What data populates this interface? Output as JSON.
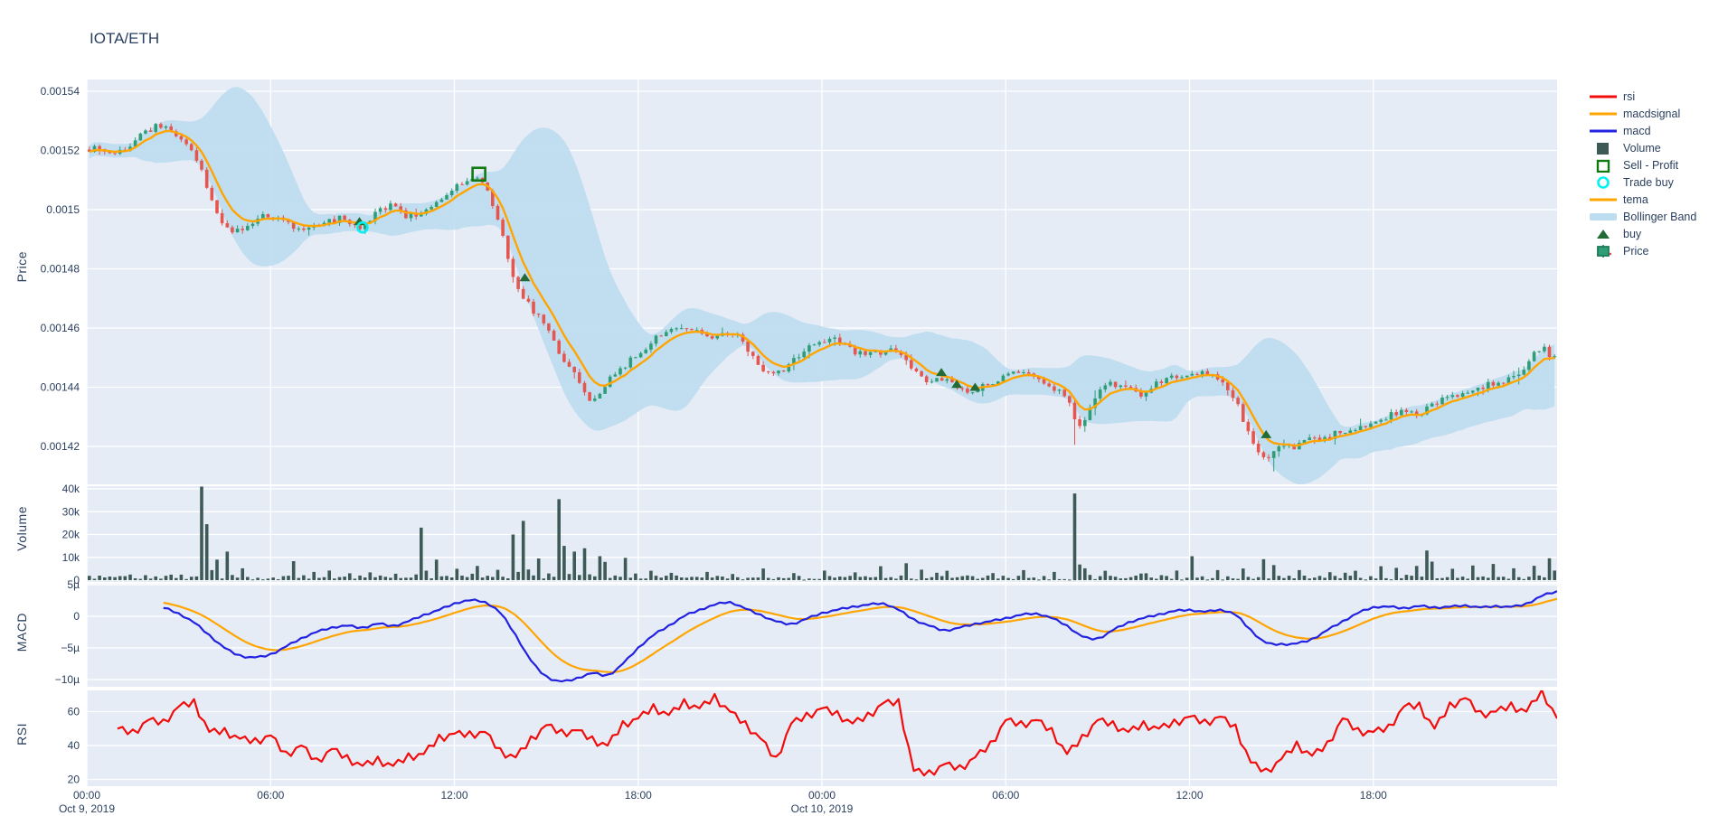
{
  "title": "IOTA/ETH",
  "colors": {
    "text": "#2a3f5f",
    "plot_bg": "#e5ecf6",
    "grid": "#ffffff",
    "candle_up": "#2f9e77",
    "candle_down": "#e4564f",
    "tema": "#ffa502",
    "macd": "#2222e0",
    "macdsignal": "#ffa502",
    "rsi": "#f20d0d",
    "volume": "#3d5a56",
    "bollinger": "#bcdcf0",
    "buy": "#226b35",
    "sell_profit": "#0f7a12",
    "trade_buy": "#00f2f2"
  },
  "legend": [
    {
      "label": "rsi",
      "type": "line",
      "color": "#f20d0d"
    },
    {
      "label": "macdsignal",
      "type": "line",
      "color": "#ffa502"
    },
    {
      "label": "macd",
      "type": "line",
      "color": "#2222e0"
    },
    {
      "label": "Volume",
      "type": "square-filled",
      "color": "#3d5a56"
    },
    {
      "label": "Sell - Profit",
      "type": "square-open",
      "color": "#0f7a12"
    },
    {
      "label": "Trade buy",
      "type": "circle-open",
      "color": "#00f2f2"
    },
    {
      "label": "tema",
      "type": "line",
      "color": "#ffa502"
    },
    {
      "label": "Bollinger Band",
      "type": "band",
      "color": "#bcdcf0"
    },
    {
      "label": "buy",
      "type": "triangle",
      "color": "#226b35"
    },
    {
      "label": "Price",
      "type": "candle",
      "color": "#2f9e77"
    }
  ],
  "axes": {
    "price": {
      "title": "Price",
      "tick_labels": [
        "0.00154",
        "0.00152",
        "0.0015",
        "0.00148",
        "0.00146",
        "0.00144",
        "0.00142"
      ],
      "tick_values_u": [
        1540,
        1520,
        1500,
        1480,
        1460,
        1440,
        1420
      ]
    },
    "volume": {
      "title": "Volume",
      "tick_labels": [
        "40k",
        "30k",
        "20k",
        "10k",
        "0"
      ],
      "tick_values": [
        40000,
        30000,
        20000,
        10000,
        0
      ]
    },
    "macd": {
      "title": "MACD",
      "tick_labels": [
        "5µ",
        "0",
        "−5µ",
        "−10µ"
      ],
      "tick_values_u": [
        5,
        0,
        -5,
        -10
      ]
    },
    "rsi": {
      "title": "RSI",
      "tick_labels": [
        "60",
        "40",
        "20"
      ],
      "tick_values": [
        60,
        40,
        20
      ]
    },
    "x": {
      "tick_labels": [
        "00:00",
        "06:00",
        "12:00",
        "18:00",
        "00:00",
        "06:00",
        "12:00",
        "18:00"
      ],
      "tick_hours": [
        0,
        6,
        12,
        18,
        24,
        30,
        36,
        42
      ],
      "day_labels": [
        {
          "label": "Oct 9, 2019",
          "hour": 0
        },
        {
          "label": "Oct 10, 2019",
          "hour": 24
        }
      ]
    }
  },
  "chart_data": [
    {
      "type": "candlestick",
      "name": "Price",
      "pair": "IOTA/ETH",
      "x_range_hours": [
        0,
        48
      ],
      "candle_minutes": 10,
      "unit": "price in 1e-6 ETH",
      "ylim_u": [
        1408,
        1544
      ],
      "path_start_hour": 0.0,
      "path_step_hours": 0.5,
      "path_30m_u": [
        1520,
        1521,
        1519,
        1522,
        1526,
        1528,
        1524,
        1521,
        1508,
        1495,
        1493,
        1496,
        1498,
        1496,
        1493,
        1494,
        1496,
        1497,
        1494,
        1499,
        1501,
        1498,
        1499,
        1503,
        1507,
        1510,
        1509,
        1497,
        1478,
        1468,
        1462,
        1452,
        1444,
        1436,
        1441,
        1446,
        1451,
        1455,
        1459,
        1461,
        1459,
        1456,
        1459,
        1455,
        1448,
        1444,
        1448,
        1452,
        1455,
        1456,
        1453,
        1451,
        1452,
        1452,
        1447,
        1442,
        1443,
        1440,
        1439,
        1441,
        1443,
        1445,
        1443,
        1440,
        1437,
        1428,
        1437,
        1441,
        1440,
        1437,
        1441,
        1444,
        1443,
        1445,
        1442,
        1437,
        1425,
        1417,
        1419,
        1420,
        1422,
        1423,
        1425,
        1426,
        1428,
        1430,
        1432,
        1431,
        1434,
        1436,
        1437,
        1440,
        1441,
        1443,
        1446,
        1453,
        1450
      ],
      "wick_events": [
        [
          2.4,
          "high",
          1529.5
        ],
        [
          32.1,
          "low",
          1420.5
        ],
        [
          38.7,
          "low",
          1411.5
        ]
      ],
      "overlays": [
        "tema (EMA of close)",
        "Bollinger Band (20, 2σ)"
      ]
    },
    {
      "type": "bar",
      "name": "Volume",
      "ylim": [
        0,
        42500
      ],
      "baseline_range": [
        250,
        2100
      ],
      "spikes_hour_value": [
        [
          3.6,
          41000
        ],
        [
          3.85,
          24500
        ],
        [
          4.1,
          9000
        ],
        [
          4.5,
          12500
        ],
        [
          5.0,
          5200
        ],
        [
          6.6,
          8300
        ],
        [
          7.3,
          3600
        ],
        [
          7.9,
          4200
        ],
        [
          8.5,
          3000
        ],
        [
          9.2,
          3400
        ],
        [
          10.0,
          2800
        ],
        [
          10.9,
          23000
        ],
        [
          11.3,
          9000
        ],
        [
          12.0,
          5000
        ],
        [
          12.6,
          6200
        ],
        [
          13.4,
          4500
        ],
        [
          13.9,
          20000
        ],
        [
          14.2,
          26000
        ],
        [
          14.6,
          9500
        ],
        [
          15.25,
          35500
        ],
        [
          15.5,
          15000
        ],
        [
          15.9,
          12500
        ],
        [
          16.2,
          14000
        ],
        [
          16.6,
          10500
        ],
        [
          16.9,
          8000
        ],
        [
          17.5,
          9800
        ],
        [
          18.3,
          4100
        ],
        [
          19.0,
          3200
        ],
        [
          20.1,
          3600
        ],
        [
          21.0,
          2700
        ],
        [
          22.0,
          5100
        ],
        [
          23.0,
          3100
        ],
        [
          24.0,
          4200
        ],
        [
          25.0,
          3400
        ],
        [
          25.8,
          6100
        ],
        [
          26.6,
          7400
        ],
        [
          27.2,
          4600
        ],
        [
          28.0,
          4100
        ],
        [
          29.5,
          3100
        ],
        [
          30.5,
          4400
        ],
        [
          31.5,
          3600
        ],
        [
          32.1,
          38000
        ],
        [
          32.5,
          5200
        ],
        [
          33.2,
          4100
        ],
        [
          34.5,
          3000
        ],
        [
          35.5,
          4200
        ],
        [
          36.0,
          10500
        ],
        [
          36.8,
          4400
        ],
        [
          37.6,
          5100
        ],
        [
          38.3,
          9200
        ],
        [
          38.7,
          6600
        ],
        [
          39.5,
          4400
        ],
        [
          40.5,
          3500
        ],
        [
          41.3,
          4100
        ],
        [
          42.2,
          6100
        ],
        [
          42.6,
          5400
        ],
        [
          43.3,
          6200
        ],
        [
          43.6,
          13000
        ],
        [
          43.9,
          8100
        ],
        [
          44.5,
          5000
        ],
        [
          45.2,
          6400
        ],
        [
          45.8,
          7100
        ],
        [
          46.5,
          5200
        ],
        [
          47.2,
          6300
        ],
        [
          47.7,
          9600
        ],
        [
          47.95,
          4200
        ]
      ]
    },
    {
      "type": "line",
      "series": [
        {
          "name": "macd",
          "color": "#2222e0"
        },
        {
          "name": "macdsignal",
          "color": "#ffa502"
        }
      ],
      "unit": "1e-6",
      "ylim_u": [
        -11,
        5
      ],
      "start_hour": 2.5,
      "step_hours": 0.5,
      "macd_30m_u": [
        1.3,
        0.4,
        -1.0,
        -3.0,
        -5.0,
        -6.2,
        -6.5,
        -6.0,
        -4.8,
        -3.5,
        -2.5,
        -1.8,
        -1.5,
        -1.8,
        -1.2,
        -1.5,
        -0.8,
        0.2,
        1.0,
        2.0,
        2.5,
        2.2,
        0.5,
        -3.0,
        -7.0,
        -9.5,
        -10.3,
        -9.8,
        -9.0,
        -9.3,
        -7.5,
        -5.0,
        -3.0,
        -1.5,
        0.0,
        1.0,
        1.8,
        2.2,
        1.2,
        0.2,
        -0.8,
        -1.2,
        -0.4,
        0.5,
        1.0,
        1.5,
        1.8,
        2.0,
        1.0,
        -0.5,
        -1.5,
        -2.2,
        -1.8,
        -1.2,
        -0.8,
        -0.3,
        0.2,
        0.4,
        -0.3,
        -1.5,
        -3.2,
        -3.5,
        -2.2,
        -1.0,
        -0.3,
        0.3,
        0.8,
        1.0,
        0.7,
        1.0,
        0.2,
        -2.2,
        -4.2,
        -4.4,
        -4.3,
        -3.6,
        -2.2,
        -0.8,
        0.5,
        1.4,
        1.5,
        1.3,
        1.6,
        1.4,
        1.5,
        1.7,
        1.4,
        1.6,
        1.5,
        2.0,
        3.2,
        3.9
      ],
      "macdsignal_note": "EMA(macd, span 12)"
    },
    {
      "type": "line",
      "series": [
        {
          "name": "rsi",
          "color": "#f20d0d"
        }
      ],
      "ylim": [
        16,
        74
      ],
      "start_hour": 1.0,
      "step_hours": 0.5,
      "rsi_30m": [
        50,
        47,
        55,
        53,
        63,
        65,
        48,
        48,
        44,
        42,
        46,
        34,
        40,
        30,
        38,
        32,
        28,
        31,
        28,
        33,
        35,
        44,
        47,
        46,
        48,
        36,
        33,
        43,
        52,
        47,
        49,
        43,
        40,
        52,
        56,
        62,
        58,
        65,
        62,
        68,
        60,
        52,
        44,
        31,
        53,
        57,
        62,
        58,
        53,
        57,
        65,
        65,
        25,
        23,
        29,
        26,
        33,
        40,
        55,
        52,
        55,
        48,
        35,
        44,
        55,
        52,
        48,
        52,
        50,
        53,
        57,
        53,
        57,
        50,
        30,
        24,
        32,
        40,
        34,
        40,
        56,
        48,
        48,
        50,
        63,
        63,
        50,
        63,
        68,
        58,
        60,
        63,
        60,
        72,
        56
      ]
    }
  ],
  "markers": {
    "unit": "price in 1e-6 ETH",
    "buy": {
      "label": "buy",
      "points_hour_price_u": [
        [
          8.9,
          1496
        ],
        [
          14.3,
          1477
        ],
        [
          27.9,
          1445
        ],
        [
          28.4,
          1441
        ],
        [
          29.0,
          1440
        ],
        [
          38.5,
          1424
        ]
      ]
    },
    "sell_profit": {
      "label": "Sell - Profit",
      "points_hour_price_u": [
        [
          12.8,
          1512
        ]
      ]
    },
    "trade_buy": {
      "label": "Trade buy",
      "points_hour_price_u": [
        [
          9.0,
          1494
        ]
      ]
    }
  }
}
